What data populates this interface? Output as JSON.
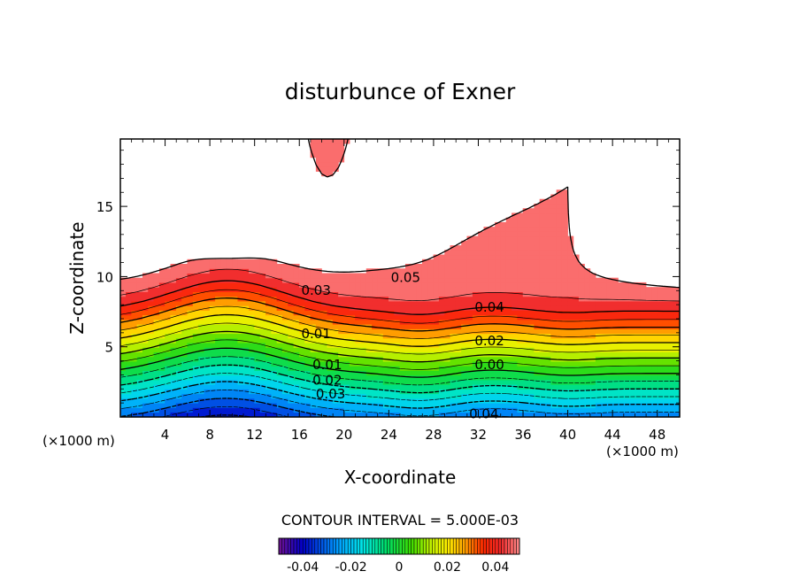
{
  "chart_data": {
    "type": "contour",
    "title": "disturbunce of Exner",
    "xlabel": "X-coordinate",
    "ylabel": "Z-coordinate",
    "x_unit": "(×1000 m)",
    "z_unit": "(×1000 m)",
    "xlim": [
      0,
      50
    ],
    "zlim": [
      0,
      19.8
    ],
    "x_ticks": [
      "4",
      "8",
      "12",
      "16",
      "20",
      "24",
      "28",
      "32",
      "36",
      "40",
      "44",
      "48"
    ],
    "x_tick_values": [
      4,
      8,
      12,
      16,
      20,
      24,
      28,
      32,
      36,
      40,
      44,
      48
    ],
    "z_ticks": [
      "5",
      "10",
      "15"
    ],
    "z_tick_values": [
      5,
      10,
      15
    ],
    "contour_interval_label": "CONTOUR INTERVAL = 5.000E-03",
    "contour_interval": 0.005,
    "level_range": [
      -0.045,
      0.05
    ],
    "contour_labels": [
      {
        "text": "0.05",
        "x": 25.5,
        "z": 9.9
      },
      {
        "text": "0.04",
        "x": 33.0,
        "z": 7.8
      },
      {
        "text": "0.03",
        "x": 17.5,
        "z": 9.0
      },
      {
        "text": "0.02",
        "x": 33.0,
        "z": 5.4
      },
      {
        "text": "0.01",
        "x": 17.5,
        "z": 5.9
      },
      {
        "text": "0.00",
        "x": 33.0,
        "z": 3.7
      },
      {
        "text": "0.01",
        "x": 18.5,
        "z": 3.7
      },
      {
        "text": "0.02",
        "x": 18.5,
        "z": 2.6
      },
      {
        "text": "0.03",
        "x": 18.8,
        "z": 1.6
      },
      {
        "text": "0.04",
        "x": 32.5,
        "z": 0.2
      }
    ],
    "colorbar": {
      "tick_labels": [
        "-0.04",
        "-0.02",
        "0",
        "0.02",
        "0.04"
      ],
      "tick_values": [
        -0.04,
        -0.02,
        0,
        0.02,
        0.04
      ],
      "range": [
        -0.05,
        0.05
      ]
    }
  }
}
